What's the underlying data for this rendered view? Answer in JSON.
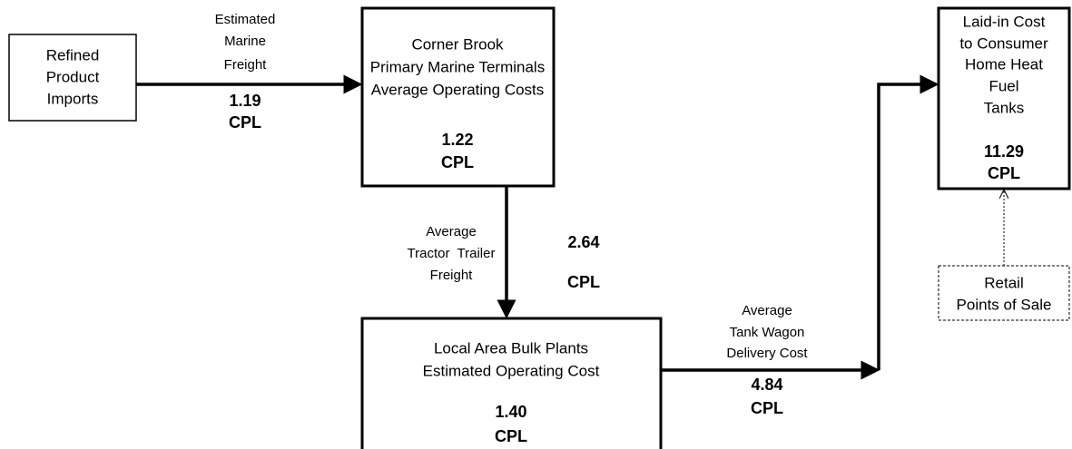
{
  "nodes": [
    {
      "lines": [
        "Refined",
        "Product",
        "Imports"
      ]
    },
    {
      "lines": [
        "Corner Brook",
        "Primary Marine Terminals",
        "Average Operating Costs"
      ],
      "value": "1.22",
      "unit": "CPL"
    },
    {
      "lines": [
        "Local Area Bulk Plants",
        "Estimated Operating Cost"
      ],
      "value": "1.40",
      "unit": "CPL"
    },
    {
      "lines": [
        "Laid-in Cost",
        "to Consumer",
        "Home Heat",
        "Fuel",
        "Tanks"
      ],
      "value": "11.29",
      "unit": "CPL"
    },
    {
      "lines": [
        "Retail",
        "Points of Sale"
      ]
    }
  ],
  "edges": [
    {
      "lines": [
        "Estimated",
        "Marine",
        "Freight"
      ],
      "value": "1.19",
      "unit": "CPL"
    },
    {
      "lines": [
        "Average",
        "Tractor  Trailer",
        "Freight"
      ],
      "value": "2.64",
      "unit": "CPL"
    },
    {
      "lines": [
        "Average",
        "Tank Wagon",
        "Delivery Cost"
      ],
      "value": "4.84",
      "unit": "CPL"
    }
  ]
}
